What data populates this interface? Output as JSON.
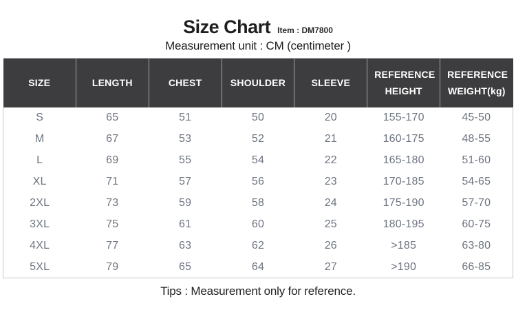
{
  "header": {
    "title": "Size Chart",
    "item_label": "Item : DM7800",
    "subtitle": "Measurement unit : CM (centimeter )"
  },
  "footer": {
    "tips": "Tips : Measurement only for reference."
  },
  "colors": {
    "header_bg": "#3d3d3f",
    "header_text": "#ffffff",
    "header_divider": "#a6a6a8",
    "body_text": "#6d7480",
    "table_border": "#c6c8cb",
    "title_text": "#1f1f1f"
  },
  "chart_data": {
    "type": "table",
    "title": "Size Chart",
    "columns": [
      "SIZE",
      "LENGTH",
      "CHEST",
      "SHOULDER",
      "SLEEVE",
      "REFERENCE HEIGHT",
      "REFERENCE WEIGHT(kg)"
    ],
    "rows": [
      [
        "S",
        "65",
        "51",
        "50",
        "20",
        "155-170",
        "45-50"
      ],
      [
        "M",
        "67",
        "53",
        "52",
        "21",
        "160-175",
        "48-55"
      ],
      [
        "L",
        "69",
        "55",
        "54",
        "22",
        "165-180",
        "51-60"
      ],
      [
        "XL",
        "71",
        "57",
        "56",
        "23",
        "170-185",
        "54-65"
      ],
      [
        "2XL",
        "73",
        "59",
        "58",
        "24",
        "175-190",
        "57-70"
      ],
      [
        "3XL",
        "75",
        "61",
        "60",
        "25",
        "180-195",
        "60-75"
      ],
      [
        "4XL",
        "77",
        "63",
        "62",
        "26",
        ">185",
        "63-80"
      ],
      [
        "5XL",
        "79",
        "65",
        "64",
        "27",
        ">190",
        "66-85"
      ]
    ]
  }
}
